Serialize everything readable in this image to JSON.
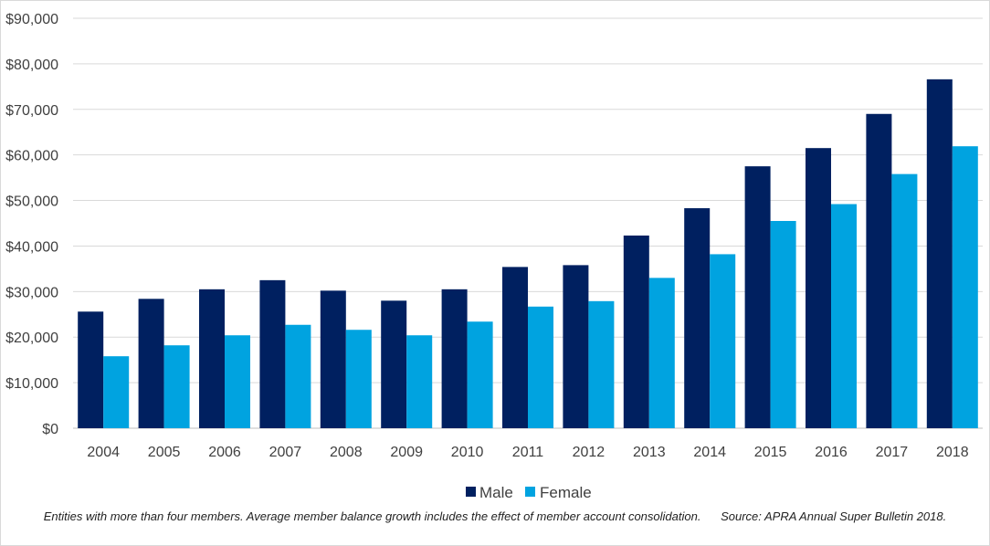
{
  "chart_data": {
    "type": "bar",
    "title": "",
    "xlabel": "",
    "ylabel": "",
    "categories": [
      "2004",
      "2005",
      "2006",
      "2007",
      "2008",
      "2009",
      "2010",
      "2011",
      "2012",
      "2013",
      "2014",
      "2015",
      "2016",
      "2017",
      "2018"
    ],
    "series": [
      {
        "name": "Male",
        "color": "#002060",
        "values": [
          25600,
          28400,
          30500,
          32500,
          30200,
          28000,
          30500,
          35400,
          35800,
          42300,
          48300,
          57500,
          61500,
          69000,
          76600
        ]
      },
      {
        "name": "Female",
        "color": "#00a3e0",
        "values": [
          15800,
          18200,
          20400,
          22700,
          21600,
          20400,
          23400,
          26700,
          27900,
          33000,
          38200,
          45500,
          49200,
          55800,
          61900
        ]
      }
    ],
    "ylim": [
      0,
      90000
    ],
    "yticks": [
      0,
      10000,
      20000,
      30000,
      40000,
      50000,
      60000,
      70000,
      80000,
      90000
    ],
    "ytick_labels": [
      "$0",
      "$10,000",
      "$20,000",
      "$30,000",
      "$40,000",
      "$50,000",
      "$60,000",
      "$70,000",
      "$80,000",
      "$90,000"
    ],
    "grid": true,
    "legend_position": "bottom-center"
  },
  "footnote": {
    "note": "Entities with more than four members. Average member balance growth includes the effect of member account consolidation.",
    "source": "Source: APRA Annual Super Bulletin 2018."
  }
}
